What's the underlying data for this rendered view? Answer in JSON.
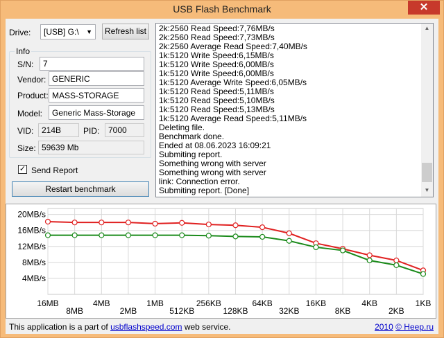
{
  "window": {
    "title": "USB Flash Benchmark",
    "close_glyph": "✕"
  },
  "drive": {
    "label": "Drive:",
    "value": "[USB] G:\\",
    "refresh_label": "Refresh list"
  },
  "info": {
    "group_title": "Info",
    "sn_label": "S/N:",
    "sn": "7",
    "vendor_label": "Vendor:",
    "vendor": "GENERIC",
    "product_label": "Product:",
    "product": "MASS-STORAGE",
    "model_label": "Model:",
    "model": "Generic Mass-Storage",
    "vid_label": "VID:",
    "vid": "214B",
    "pid_label": "PID:",
    "pid": "7000",
    "size_label": "Size:",
    "size": "59639 Mb"
  },
  "send_report": {
    "label": "Send Report",
    "checked": true,
    "check_glyph": "✓"
  },
  "restart_label": "Restart benchmark",
  "log": [
    "2k:2560 Read Speed:7,76MB/s",
    "2k:2560 Read Speed:7,73MB/s",
    "2k:2560 Average Read Speed:7,40MB/s",
    "1k:5120 Write Speed:6,15MB/s",
    "1k:5120 Write Speed:6,00MB/s",
    "1k:5120 Write Speed:6,00MB/s",
    "1k:5120 Average Write Speed:6,05MB/s",
    "1k:5120 Read Speed:5,11MB/s",
    "1k:5120 Read Speed:5,10MB/s",
    "1k:5120 Read Speed:5,13MB/s",
    "1k:5120 Average Read Speed:5,11MB/s",
    "Deleting file.",
    "Benchmark done.",
    "Ended at 08.06.2023 16:09:21",
    "Submiting report.",
    "Something wrong with server",
    "Something wrong with server",
    "link: Connection error.",
    "Submiting report. [Done]"
  ],
  "chart_data": {
    "type": "line",
    "categories": [
      "16MB",
      "8MB",
      "4MB",
      "2MB",
      "1MB",
      "512KB",
      "256KB",
      "128KB",
      "64KB",
      "32KB",
      "16KB",
      "8KB",
      "4KB",
      "2KB",
      "1KB"
    ],
    "y_ticks": [
      "20MB/s",
      "16MB/s",
      "12MB/s",
      "8MB/s",
      "4MB/s"
    ],
    "ylim": [
      0,
      21.5
    ],
    "grid": true,
    "series": [
      {
        "color": "#e02020",
        "values": [
          18.2,
          18.0,
          18.0,
          18.0,
          17.7,
          17.9,
          17.5,
          17.3,
          16.8,
          15.3,
          12.8,
          11.4,
          9.8,
          8.5,
          6.0
        ]
      },
      {
        "color": "#1a8a1a",
        "values": [
          14.8,
          14.8,
          14.8,
          14.8,
          14.8,
          14.8,
          14.7,
          14.5,
          14.4,
          13.4,
          11.8,
          11.0,
          8.5,
          7.3,
          5.1
        ]
      }
    ]
  },
  "footer": {
    "text_before": "This application is a part of ",
    "link": "usbflashspeed.com",
    "text_after": " web service.",
    "year": "2010",
    "copyright": "© Heep.ru"
  }
}
